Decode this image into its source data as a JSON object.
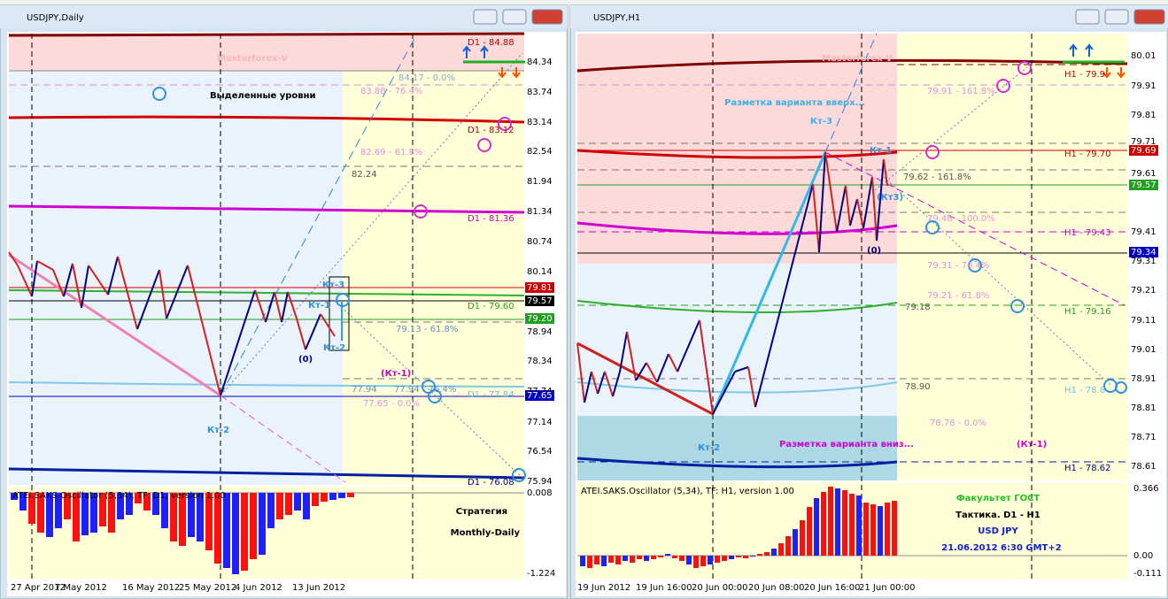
{
  "windows": [
    {
      "title": "USDJPY,Daily",
      "watermark": "Masterforex-V",
      "price_labels": [
        "84.34",
        "83.74",
        "83.14",
        "82.54",
        "81.94",
        "81.34",
        "80.74",
        "80.14",
        "79.81",
        "79.57",
        "79.20",
        "78.94",
        "78.34",
        "77.74",
        "77.65",
        "77.14",
        "76.54",
        "75.94"
      ],
      "osc_title": "ATEI.SAKS.Oscillator (5,34), TF: D1, version 1.00",
      "osc_labels": [
        "0.008",
        "-1.224"
      ],
      "dates": [
        "27 Apr 2012",
        "7 May 2012",
        "16 May 2012",
        "25 May 2012",
        "4 Jun 2012",
        "13 Jun 2012"
      ],
      "annotations": [
        "D1 - 84.88",
        "84.17 - 0.0%",
        "83.88 - 76.4%",
        "D1 - 83.12",
        "82.69 - 61.8%",
        "82.24",
        "D1 - 81.36",
        "D1 - 79.60",
        "79.13 - 61.8%",
        "77.94",
        "77.94 - 76.4%",
        "D1 - 77.84",
        "77.65 - 0.0%",
        "D1 - 76.08",
        "Выделенные уровни",
        "Кт-3",
        "Кт-1",
        "Кт-2",
        "(0)",
        "(Кт-1)",
        "Кт-2"
      ],
      "notes": [
        "Стратегия",
        "Monthly-Daily"
      ]
    },
    {
      "title": "USDJPY,H1",
      "watermark": "Masterforex-V",
      "price_labels": [
        "80.01",
        "79.91",
        "79.81",
        "79.71",
        "79.69",
        "79.61",
        "79.57",
        "79.41",
        "79.34",
        "79.31",
        "79.21",
        "79.11",
        "79.01",
        "78.91",
        "78.81",
        "78.71",
        "78.61"
      ],
      "osc_title": "ATEI.SAKS.Oscillator (5,34), TF: H1, version 1.00",
      "osc_labels": [
        "0.366",
        "0.00",
        "-0.111"
      ],
      "dates": [
        "19 Jun 2012",
        "19 Jun 16:00",
        "20 Jun 00:00",
        "20 Jun 08:00",
        "20 Jun 16:00",
        "21 Jun 00:00"
      ],
      "annotations": [
        "H1 - 79.9",
        "79.91 - 161.8%",
        "Разметка варианта вверх...",
        "Кт-3",
        "Кт-1",
        "H1 - 79.70",
        "79.62 - 161.8%",
        "(Кт3)",
        "79.48 - 100.0%",
        "H1 - 79.43",
        "(0)",
        "79.31 - 76.4%",
        "79.21 - 61.8%",
        "79.18",
        "H1 - 79.16",
        "78.90",
        "H1 - 78.8",
        "78.78 - 0.0%",
        "Кт-2",
        "Разметка варианта вниз...",
        "(Кт-1)",
        "H1 - 78.62"
      ],
      "notes": [
        "Факультет ГОСТ",
        "Тактика. D1 - H1",
        "USD JPY",
        "21.06.2012 6:30 GMT+2"
      ]
    }
  ]
}
